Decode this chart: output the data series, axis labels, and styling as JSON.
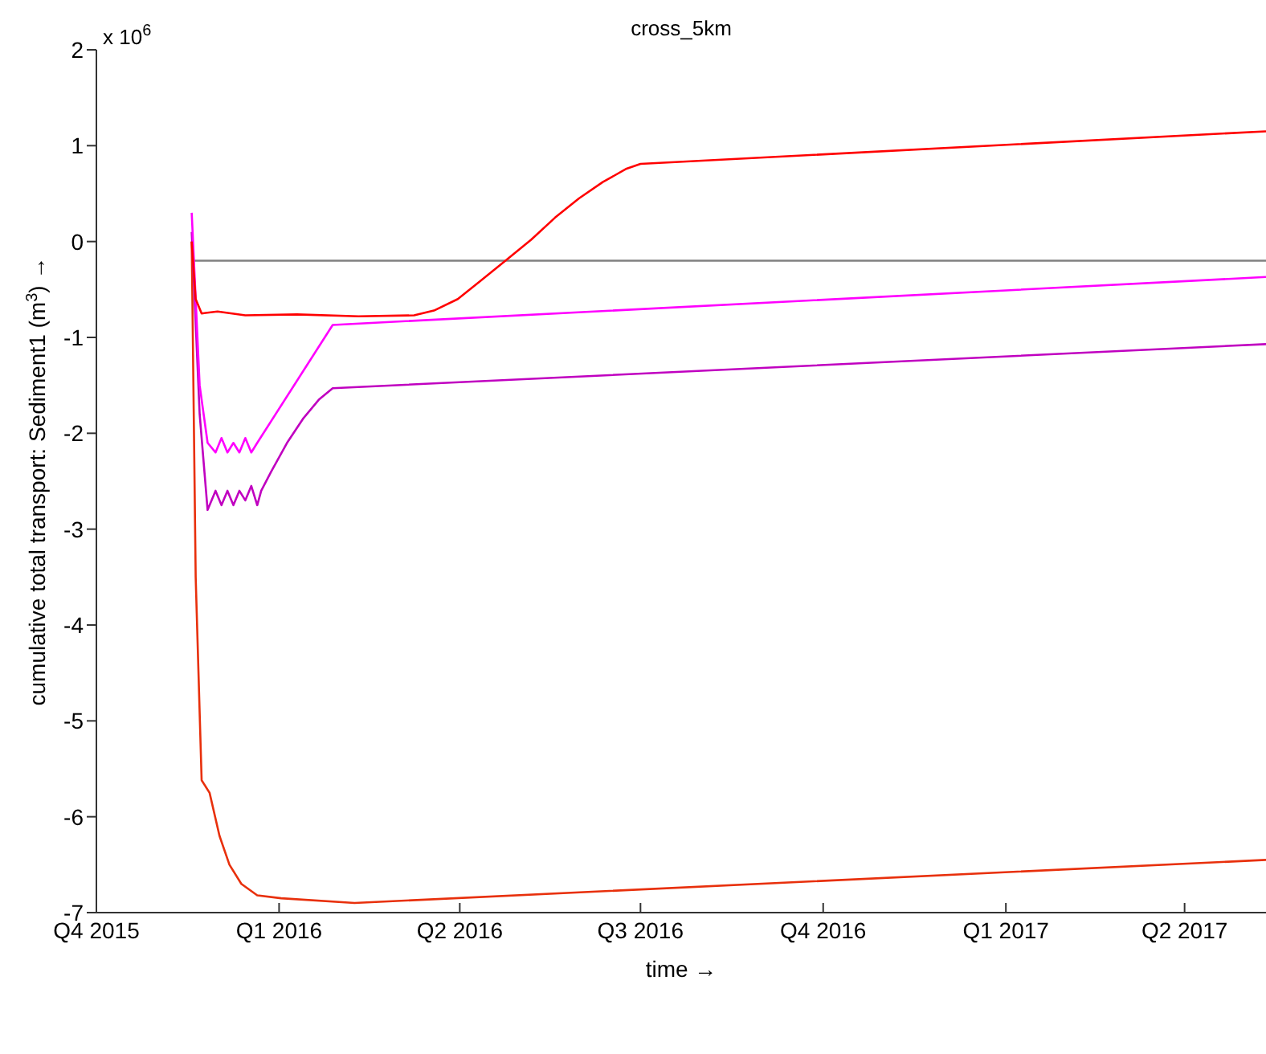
{
  "chart_data": {
    "type": "line",
    "title": "cross_5km",
    "xlabel": "time →",
    "ylabel": "cumulative total transport: Sediment1 (m$^{3}$) →",
    "annotations": [
      "x 10$^{6}$"
    ],
    "xlim": [
      "2015-10-01",
      "2017-05-12"
    ],
    "xticks": [
      {
        "value": "2015-10-01",
        "label": "Q4 2015"
      },
      {
        "value": "2016-01-01",
        "label": "Q1 2016"
      },
      {
        "value": "2016-04-01",
        "label": "Q2 2016"
      },
      {
        "value": "2016-07-01",
        "label": "Q3 2016"
      },
      {
        "value": "2016-10-01",
        "label": "Q4 2016"
      },
      {
        "value": "2017-01-01",
        "label": "Q1 2017"
      },
      {
        "value": "2017-04-01",
        "label": "Q2 2017"
      }
    ],
    "ylim": [
      -7,
      2
    ],
    "yticks": [
      -7,
      -6,
      -5,
      -4,
      -3,
      -2,
      -1,
      0,
      1,
      2
    ],
    "marker": "none",
    "line_style": "solid",
    "series": [
      {
        "color": "#808080",
        "x": [
          "2015-11-18",
          "2017-05-12"
        ],
        "values": [
          -0.2,
          -0.2
        ]
      },
      {
        "color": "#e8300c",
        "x": [
          "2015-11-18",
          "2015-11-20",
          "2015-11-23",
          "2015-11-27",
          "2015-12-02",
          "2015-12-07",
          "2015-12-13",
          "2015-12-21",
          "2016-01-02",
          "2016-02-08",
          "2017-05-12"
        ],
        "values": [
          0.0,
          -3.5,
          -5.62,
          -5.75,
          -6.2,
          -6.5,
          -6.7,
          -6.82,
          -6.85,
          -6.9,
          -6.45
        ]
      },
      {
        "color": "#c000c0",
        "x": [
          "2015-11-18",
          "2015-11-22",
          "2015-11-26",
          "2015-11-30",
          "2015-12-03",
          "2015-12-06",
          "2015-12-09",
          "2015-12-12",
          "2015-12-15",
          "2015-12-18",
          "2015-12-21",
          "2015-12-23",
          "2015-12-28",
          "2016-01-05",
          "2016-01-13",
          "2016-01-21",
          "2016-01-28",
          "2017-05-12"
        ],
        "values": [
          0.1,
          -1.8,
          -2.8,
          -2.6,
          -2.75,
          -2.6,
          -2.75,
          -2.6,
          -2.7,
          -2.55,
          -2.75,
          -2.6,
          -2.4,
          -2.1,
          -1.85,
          -1.65,
          -1.53,
          -1.07
        ]
      },
      {
        "color": "#ff00ff",
        "x": [
          "2015-11-18",
          "2015-11-22",
          "2015-11-26",
          "2015-11-30",
          "2015-12-03",
          "2015-12-06",
          "2015-12-09",
          "2015-12-12",
          "2015-12-15",
          "2015-12-18",
          "2015-12-21",
          "2016-01-28",
          "2017-05-12"
        ],
        "values": [
          0.3,
          -1.5,
          -2.1,
          -2.2,
          -2.05,
          -2.2,
          -2.1,
          -2.2,
          -2.05,
          -2.2,
          -2.1,
          -0.87,
          -0.37
        ]
      },
      {
        "color": "#ff0000",
        "x": [
          "2015-11-18",
          "2015-11-20",
          "2015-11-23",
          "2015-12-01",
          "2015-12-15",
          "2016-01-10",
          "2016-02-10",
          "2016-03-09",
          "2016-03-19",
          "2016-03-31",
          "2016-04-12",
          "2016-04-24",
          "2016-05-07",
          "2016-05-19",
          "2016-05-31",
          "2016-06-12",
          "2016-06-24",
          "2016-07-01",
          "2017-05-12"
        ],
        "values": [
          0.0,
          -0.6,
          -0.75,
          -0.73,
          -0.77,
          -0.76,
          -0.78,
          -0.77,
          -0.72,
          -0.6,
          -0.4,
          -0.2,
          0.02,
          0.25,
          0.45,
          0.62,
          0.76,
          0.81,
          1.15
        ]
      }
    ]
  }
}
